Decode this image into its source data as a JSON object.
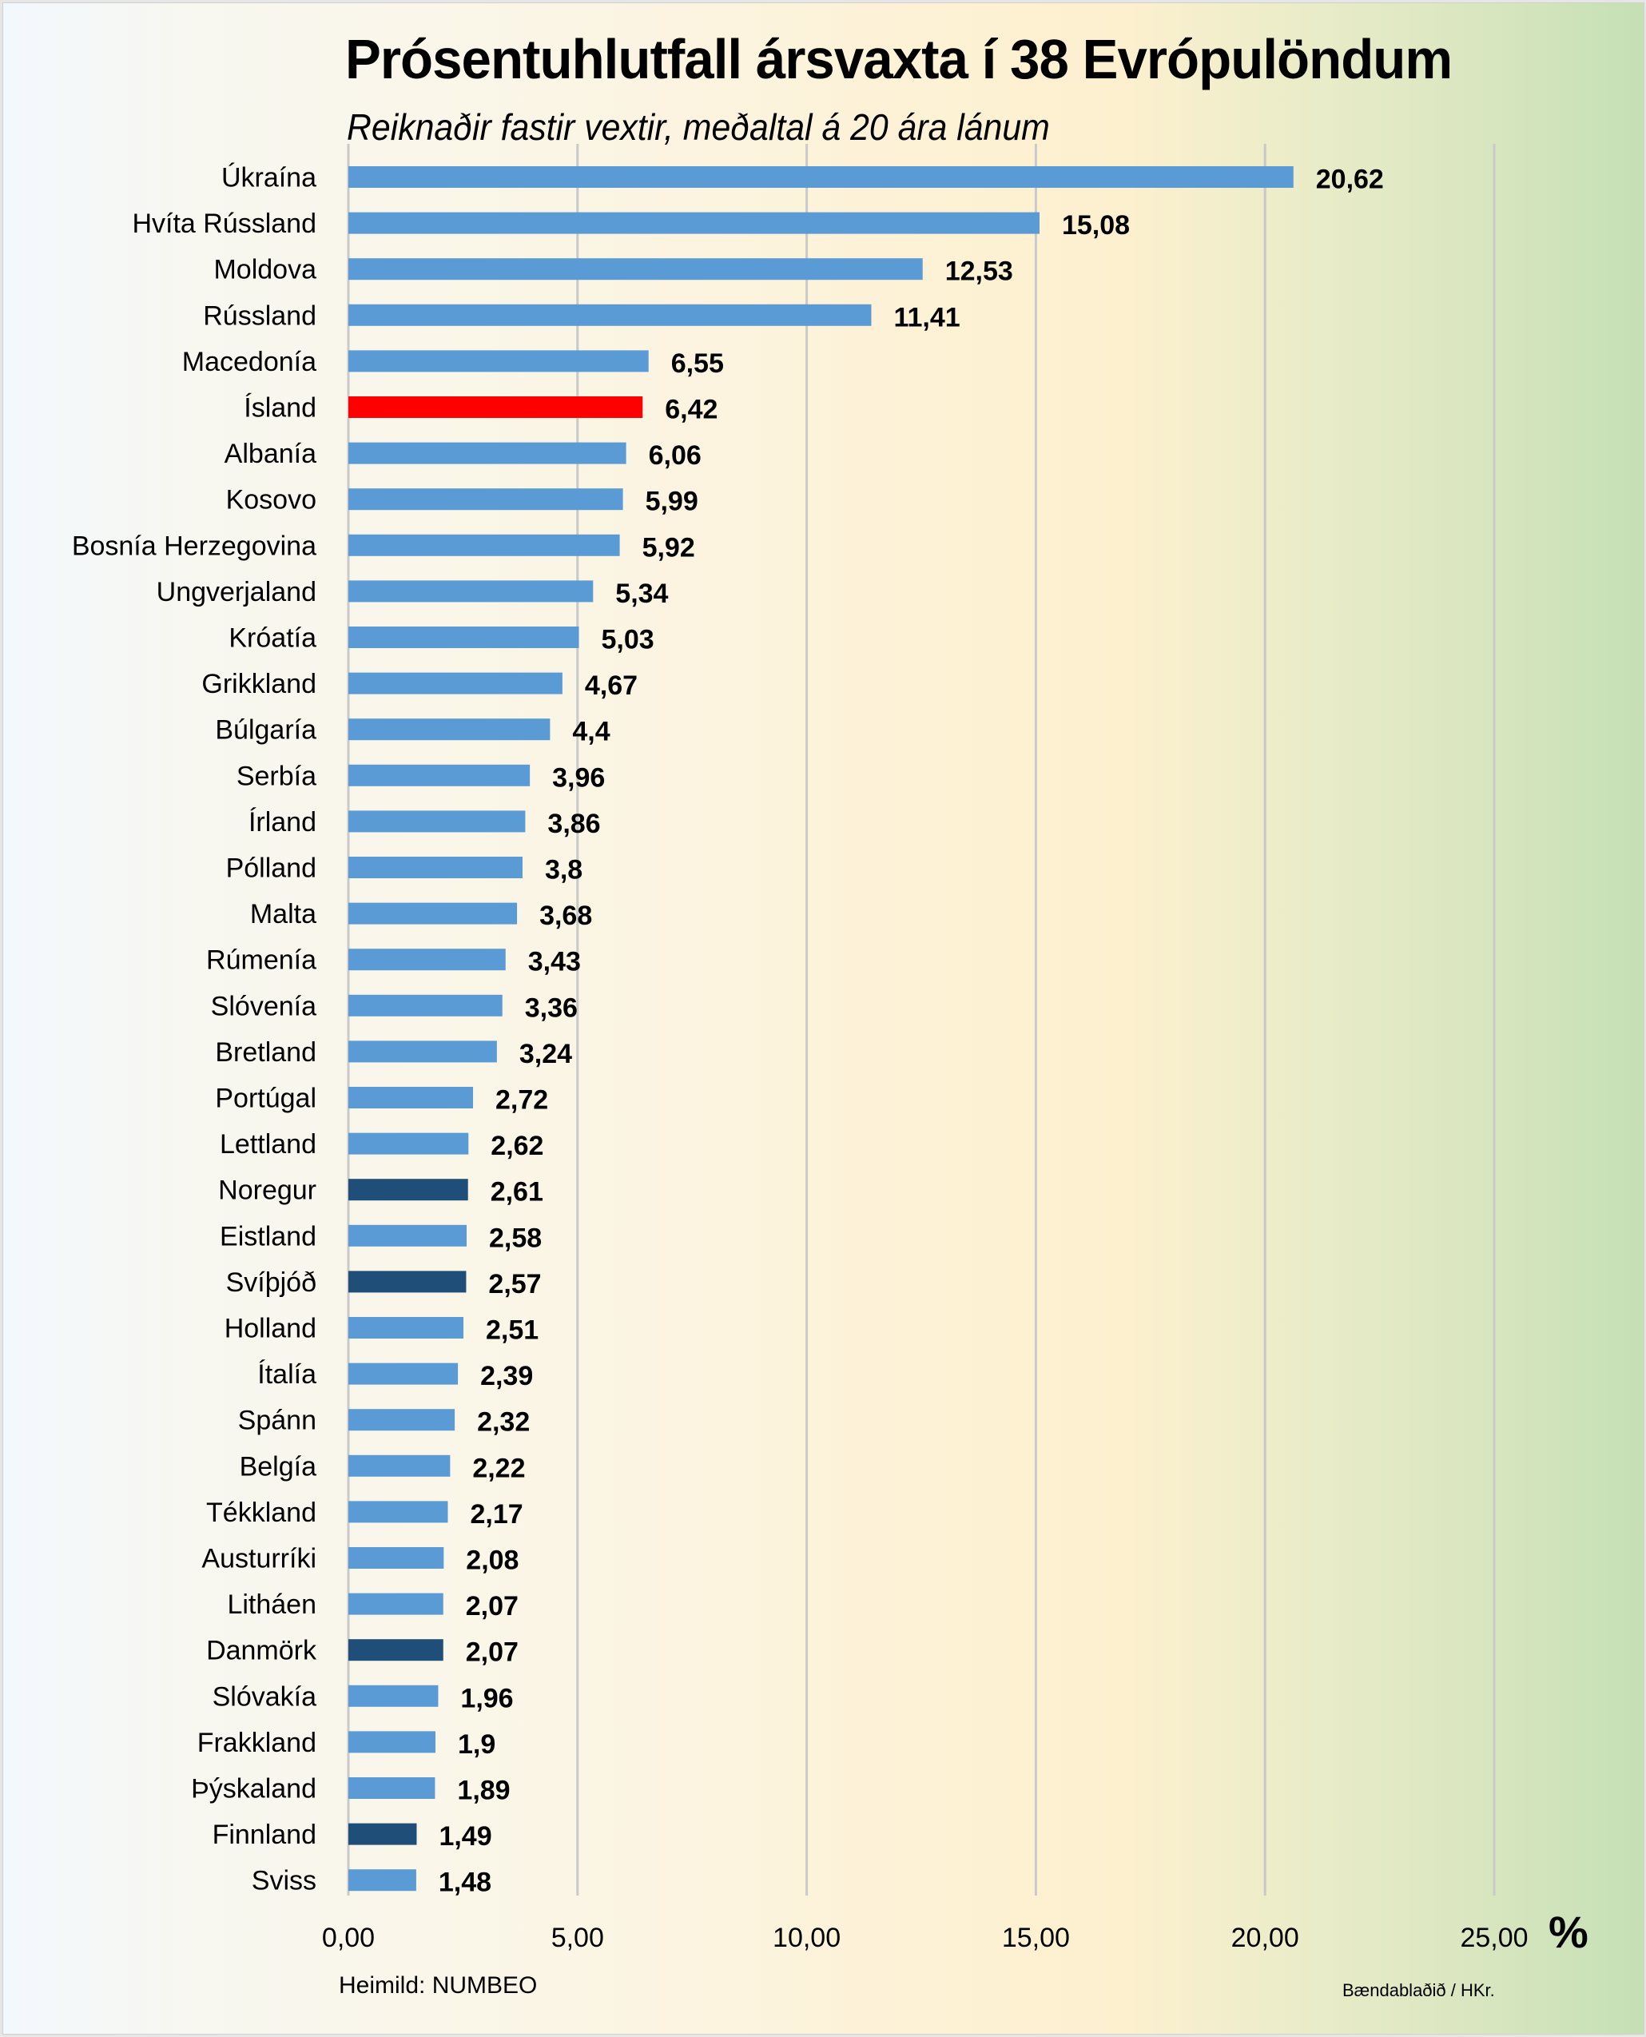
{
  "chart_data": {
    "type": "bar",
    "orientation": "horizontal",
    "title": "Prósentuhlutfall ársvaxta í 38 Evrópulöndum",
    "subtitle": "Reiknaðir fastir vextir, meðaltal á 20 ára lánum",
    "xlabel": "%",
    "ylabel": "",
    "xlim": [
      0,
      25
    ],
    "xticks": [
      "0,00",
      "5,00",
      "10,00",
      "15,00",
      "20,00",
      "25,00"
    ],
    "xtick_values": [
      0,
      5,
      10,
      15,
      20,
      25
    ],
    "grid": "vertical",
    "legend": "none",
    "categories": [
      "Úkraína",
      "Hvíta Rússland",
      "Moldova",
      "Rússland",
      "Macedonía",
      "Ísland",
      "Albanía",
      "Kosovo",
      "Bosnía Herzegovina",
      "Ungverjaland",
      "Króatía",
      "Grikkland",
      "Búlgaría",
      "Serbía",
      "Írland",
      "Pólland",
      "Malta",
      "Rúmenía",
      "Slóvenía",
      "Bretland",
      "Portúgal",
      "Lettland",
      "Noregur",
      "Eistland",
      "Svíþjóð",
      "Holland",
      "Ítalía",
      "Spánn",
      "Belgía",
      "Tékkland",
      "Austurríki",
      "Litháen",
      "Danmörk",
      "Slóvakía",
      "Frakkland",
      "Þýskaland",
      "Finnland",
      "Sviss"
    ],
    "values": [
      20.62,
      15.08,
      12.53,
      11.41,
      6.55,
      6.42,
      6.06,
      5.99,
      5.92,
      5.34,
      5.03,
      4.67,
      4.4,
      3.96,
      3.86,
      3.8,
      3.68,
      3.43,
      3.36,
      3.24,
      2.72,
      2.62,
      2.61,
      2.58,
      2.57,
      2.51,
      2.39,
      2.32,
      2.22,
      2.17,
      2.08,
      2.07,
      2.07,
      1.96,
      1.9,
      1.89,
      1.49,
      1.48
    ],
    "value_labels": [
      "20,62",
      "15,08",
      "12,53",
      "11,41",
      "6,55",
      "6,42",
      "6,06",
      "5,99",
      "5,92",
      "5,34",
      "5,03",
      "4,67",
      "4,4",
      "3,96",
      "3,86",
      "3,8",
      "3,68",
      "3,43",
      "3,36",
      "3,24",
      "2,72",
      "2,62",
      "2,61",
      "2,58",
      "2,57",
      "2,51",
      "2,39",
      "2,32",
      "2,22",
      "2,17",
      "2,08",
      "2,07",
      "2,07",
      "1,96",
      "1,9",
      "1,89",
      "1,49",
      "1,48"
    ],
    "highlight": {
      "Ísland": "red",
      "Noregur": "nordic",
      "Svíþjóð": "nordic",
      "Danmörk": "nordic",
      "Finnland": "nordic"
    },
    "colors": {
      "default": "#5b9bd5",
      "red": "#ff0000",
      "nordic": "#1f4e79",
      "grid": "#c9c9c9"
    }
  },
  "footer": {
    "source": "Heimild: NUMBEO",
    "credit": "Bændablaðið / HKr."
  }
}
